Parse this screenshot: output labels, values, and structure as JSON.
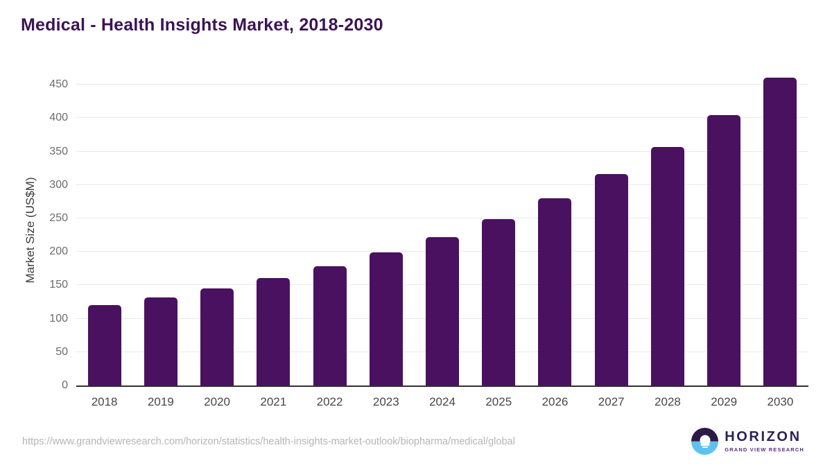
{
  "chart": {
    "title": "Medical - Health Insights Market, 2018-2030",
    "ylabel": "Market Size (US$M)"
  },
  "chart_data": {
    "type": "bar",
    "title": "Medical - Health Insights Market, 2018-2030",
    "xlabel": "",
    "ylabel": "Market Size (US$M)",
    "categories": [
      "2018",
      "2019",
      "2020",
      "2021",
      "2022",
      "2023",
      "2024",
      "2025",
      "2026",
      "2027",
      "2028",
      "2029",
      "2030"
    ],
    "values": [
      120,
      132,
      145,
      161,
      178,
      199,
      222,
      249,
      280,
      316,
      357,
      405,
      461
    ],
    "yticks": [
      0,
      50,
      100,
      150,
      200,
      250,
      300,
      350,
      400,
      450
    ],
    "ylim": [
      0,
      470
    ],
    "grid": "horizontal",
    "legend_position": "none",
    "bar_color": "#4a1160"
  },
  "colors": {
    "title": "#3a1454",
    "bar": "#4a1160",
    "gridline": "#e8e8e8",
    "axis_line": "#2f2f2f",
    "logo_dark": "#2c1a45",
    "logo_blue": "#5ec2ee",
    "logo_text": "#2c2157"
  },
  "footer": {
    "source_url": "https://www.grandviewresearch.com/horizon/statistics/health-insights-market-outlook/biopharma/medical/global",
    "logo": {
      "name": "HORIZON",
      "subtitle": "GRAND VIEW RESEARCH"
    }
  }
}
